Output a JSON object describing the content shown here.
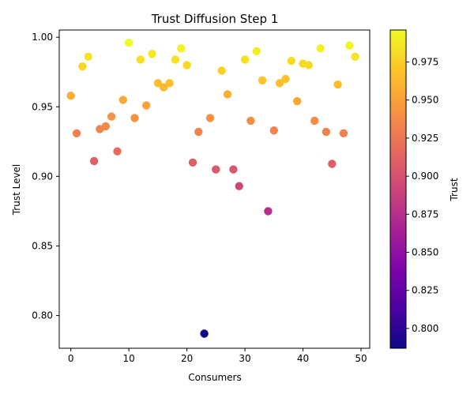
{
  "chart_data": {
    "type": "scatter",
    "title": "Trust Diffusion Step 1",
    "xlabel": "Consumers",
    "ylabel": "Trust Level",
    "xlim": [
      -2,
      51.5
    ],
    "ylim": [
      0.7765,
      1.0052
    ],
    "xticks": [
      0,
      10,
      20,
      30,
      40,
      50
    ],
    "xtick_labels": [
      "0",
      "10",
      "20",
      "30",
      "40",
      "50"
    ],
    "yticks": [
      0.8,
      0.85,
      0.9,
      0.95,
      1.0
    ],
    "ytick_labels": [
      "0.80",
      "0.85",
      "0.90",
      "0.95",
      "1.00"
    ],
    "grid": false,
    "colormap": "plasma",
    "colorbar": {
      "label": "Trust",
      "range": [
        0.787,
        0.996
      ],
      "ticks": [
        0.8,
        0.825,
        0.85,
        0.875,
        0.9,
        0.925,
        0.95,
        0.975
      ],
      "tick_labels": [
        "0.800",
        "0.825",
        "0.850",
        "0.875",
        "0.900",
        "0.925",
        "0.950",
        "0.975"
      ]
    },
    "x": [
      0,
      1,
      2,
      3,
      4,
      5,
      6,
      7,
      8,
      9,
      10,
      11,
      12,
      13,
      14,
      15,
      16,
      17,
      18,
      19,
      20,
      21,
      22,
      23,
      24,
      25,
      26,
      27,
      28,
      29,
      30,
      31,
      32,
      33,
      34,
      35,
      36,
      37,
      38,
      39,
      40,
      41,
      42,
      43,
      44,
      45,
      46,
      47,
      48,
      49
    ],
    "y": [
      0.958,
      0.931,
      0.979,
      0.986,
      0.911,
      0.934,
      0.936,
      0.943,
      0.918,
      0.955,
      0.996,
      0.942,
      0.984,
      0.951,
      0.988,
      0.967,
      0.964,
      0.967,
      0.984,
      0.992,
      0.98,
      0.91,
      0.932,
      0.787,
      0.942,
      0.905,
      0.976,
      0.959,
      0.905,
      0.893,
      0.984,
      0.94,
      0.99,
      0.969,
      0.875,
      0.933,
      0.967,
      0.97,
      0.983,
      0.954,
      0.981,
      0.98,
      0.94,
      0.992,
      0.932,
      0.909,
      0.966,
      0.931,
      0.994,
      0.986
    ]
  }
}
